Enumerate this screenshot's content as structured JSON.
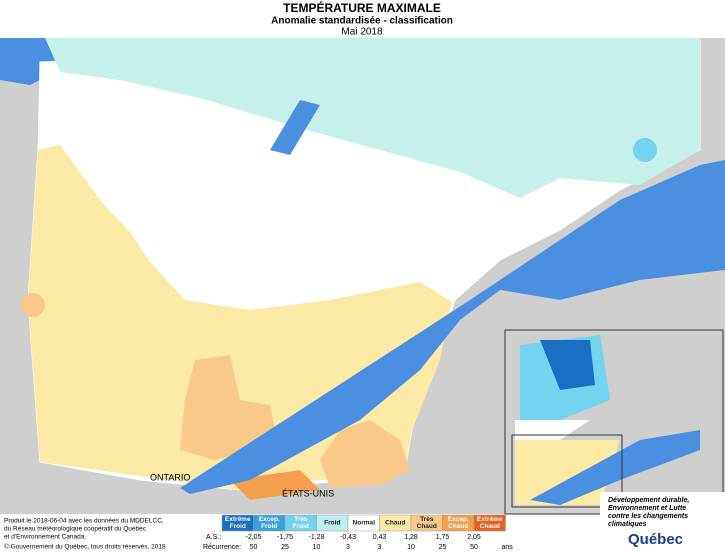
{
  "header": {
    "title": "TEMPÉRATURE MAXIMALE",
    "subtitle": "Anomalie standardisée - classification",
    "date": "Mai 2018"
  },
  "map_labels": {
    "ontario": "ONTARIO",
    "usa": "ÉTATS-UNIS"
  },
  "legend": {
    "classes": [
      {
        "lines": [
          "Extrême",
          "Froid"
        ],
        "color": "#1b6fc2"
      },
      {
        "lines": [
          "Excep.",
          "Froid"
        ],
        "color": "#3c9fe0"
      },
      {
        "lines": [
          "Très",
          "Froid"
        ],
        "color": "#74d3ef"
      },
      {
        "lines": [
          "Froid"
        ],
        "color": "#bdeef0"
      },
      {
        "lines": [
          "Normal"
        ],
        "color": "#ffffff"
      },
      {
        "lines": [
          "Chaud"
        ],
        "color": "#fde9a6"
      },
      {
        "lines": [
          "Très",
          "Chaud"
        ],
        "color": "#f9c98a"
      },
      {
        "lines": [
          "Excep.",
          "Chaud"
        ],
        "color": "#f3a04e"
      },
      {
        "lines": [
          "Extrême",
          "Chaud"
        ],
        "color": "#e5631f"
      }
    ],
    "as_label": "A.S.:",
    "thresholds": [
      "-2,05",
      "-1,75",
      "-1,28",
      "-0,43",
      "0,43",
      "1,28",
      "1,75",
      "2,05"
    ],
    "recurrence_label": "Récurrence:",
    "recurrence": [
      "50",
      "25",
      "10",
      "3",
      "3",
      "10",
      "25",
      "50"
    ],
    "unit": "ans"
  },
  "footer": {
    "credits": [
      "Produit le 2018-06-04 avec les données du MDDELCC,",
      "du Réseau météorologique coopératif du Québec",
      "et d'Environnement Canada."
    ],
    "copyright": "© Gouvernement du Québec, tous droits réservés, 2018"
  },
  "logo": {
    "lines": [
      "Développement durable,",
      "Environnement et Lutte",
      "contre les changements",
      "climatiques"
    ],
    "name": "Québec"
  }
}
